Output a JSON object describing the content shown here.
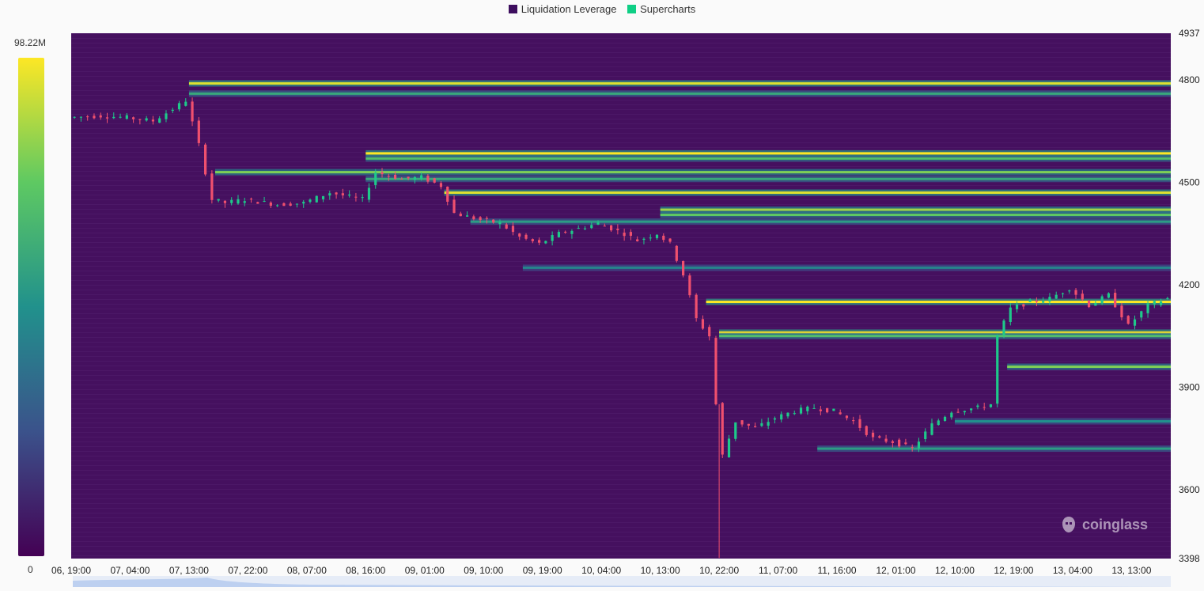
{
  "legend": {
    "items": [
      {
        "label": "Liquidation Leverage",
        "color": "#3d0e5e"
      },
      {
        "label": "Supercharts",
        "color": "#0fcf85"
      }
    ]
  },
  "colorbar": {
    "max_label": "98.22M",
    "min_label": "0",
    "stops": [
      "#440154",
      "#3b528b",
      "#21918c",
      "#5ec962",
      "#fde725"
    ]
  },
  "watermark": "coinglass",
  "chart_data": {
    "type": "heatmap",
    "title": "",
    "ylim": [
      3398,
      4937
    ],
    "y_ticks": [
      4937,
      4800,
      4500,
      4200,
      3900,
      3600,
      3398
    ],
    "x_ticks": [
      "06, 19:00",
      "07, 04:00",
      "07, 13:00",
      "07, 22:00",
      "08, 07:00",
      "08, 16:00",
      "09, 01:00",
      "09, 10:00",
      "09, 19:00",
      "10, 04:00",
      "10, 13:00",
      "10, 22:00",
      "11, 07:00",
      "11, 16:00",
      "12, 01:00",
      "12, 10:00",
      "12, 19:00",
      "13, 04:00",
      "13, 13:00"
    ],
    "x_start": "06, 19:00",
    "x_end": "13, 19:00",
    "background_color": "#45105f",
    "up_color": "#1ec98a",
    "down_color": "#f0506e",
    "price_path": [
      [
        "06, 19:00",
        4690
      ],
      [
        "07, 00:00",
        4695
      ],
      [
        "07, 04:00",
        4690
      ],
      [
        "07, 08:00",
        4680
      ],
      [
        "07, 11:00",
        4715
      ],
      [
        "07, 13:00",
        4740
      ],
      [
        "07, 15:00",
        4610
      ],
      [
        "07, 17:00",
        4450
      ],
      [
        "07, 19:00",
        4440
      ],
      [
        "07, 22:00",
        4450
      ],
      [
        "08, 03:00",
        4435
      ],
      [
        "08, 07:00",
        4440
      ],
      [
        "08, 11:00",
        4470
      ],
      [
        "08, 16:00",
        4450
      ],
      [
        "08, 18:00",
        4530
      ],
      [
        "08, 22:00",
        4510
      ],
      [
        "09, 01:00",
        4515
      ],
      [
        "09, 04:00",
        4490
      ],
      [
        "09, 06:00",
        4410
      ],
      [
        "09, 10:00",
        4390
      ],
      [
        "09, 13:00",
        4380
      ],
      [
        "09, 16:00",
        4340
      ],
      [
        "09, 19:00",
        4320
      ],
      [
        "09, 22:00",
        4350
      ],
      [
        "10, 04:00",
        4380
      ],
      [
        "10, 08:00",
        4350
      ],
      [
        "10, 10:00",
        4330
      ],
      [
        "10, 13:00",
        4350
      ],
      [
        "10, 15:00",
        4320
      ],
      [
        "10, 17:00",
        4230
      ],
      [
        "10, 19:00",
        4100
      ],
      [
        "10, 21:00",
        4050
      ],
      [
        "10, 22:00",
        3850
      ],
      [
        "10, 23:00",
        3700
      ],
      [
        "11, 01:00",
        3800
      ],
      [
        "11, 04:00",
        3780
      ],
      [
        "11, 07:00",
        3810
      ],
      [
        "11, 10:00",
        3830
      ],
      [
        "11, 13:00",
        3840
      ],
      [
        "11, 16:00",
        3830
      ],
      [
        "11, 19:00",
        3800
      ],
      [
        "11, 22:00",
        3750
      ],
      [
        "12, 01:00",
        3740
      ],
      [
        "12, 04:00",
        3720
      ],
      [
        "12, 07:00",
        3790
      ],
      [
        "12, 10:00",
        3830
      ],
      [
        "12, 14:00",
        3840
      ],
      [
        "12, 16:00",
        3850
      ],
      [
        "12, 17:00",
        4050
      ],
      [
        "12, 19:00",
        4130
      ],
      [
        "12, 22:00",
        4150
      ],
      [
        "13, 01:00",
        4160
      ],
      [
        "13, 04:00",
        4190
      ],
      [
        "13, 07:00",
        4140
      ],
      [
        "13, 10:00",
        4170
      ],
      [
        "13, 13:00",
        4080
      ],
      [
        "13, 16:00",
        4140
      ],
      [
        "13, 19:00",
        4160
      ]
    ],
    "price_low_wick": [
      "10, 22:00",
      3400
    ],
    "liquidation_bands": [
      {
        "price": 4790,
        "start": "07, 13:00",
        "intensity": 0.95
      },
      {
        "price": 4760,
        "start": "07, 13:00",
        "intensity": 0.6
      },
      {
        "price": 4585,
        "start": "08, 16:00",
        "intensity": 1.0
      },
      {
        "price": 4570,
        "start": "08, 16:00",
        "intensity": 0.7
      },
      {
        "price": 4530,
        "start": "07, 17:00",
        "intensity": 0.8
      },
      {
        "price": 4510,
        "start": "08, 16:00",
        "intensity": 0.6
      },
      {
        "price": 4470,
        "start": "09, 04:00",
        "intensity": 0.95
      },
      {
        "price": 4420,
        "start": "10, 13:00",
        "intensity": 0.85
      },
      {
        "price": 4405,
        "start": "10, 13:00",
        "intensity": 0.75
      },
      {
        "price": 4385,
        "start": "09, 08:00",
        "intensity": 0.55
      },
      {
        "price": 4250,
        "start": "09, 16:00",
        "intensity": 0.45
      },
      {
        "price": 4150,
        "start": "10, 20:00",
        "intensity": 1.0
      },
      {
        "price": 4060,
        "start": "10, 22:00",
        "intensity": 1.0
      },
      {
        "price": 4050,
        "start": "10, 22:00",
        "intensity": 0.7
      },
      {
        "price": 3960,
        "start": "12, 18:00",
        "intensity": 0.8
      },
      {
        "price": 3800,
        "start": "12, 10:00",
        "intensity": 0.5
      },
      {
        "price": 3720,
        "start": "11, 13:00",
        "intensity": 0.55
      }
    ]
  }
}
